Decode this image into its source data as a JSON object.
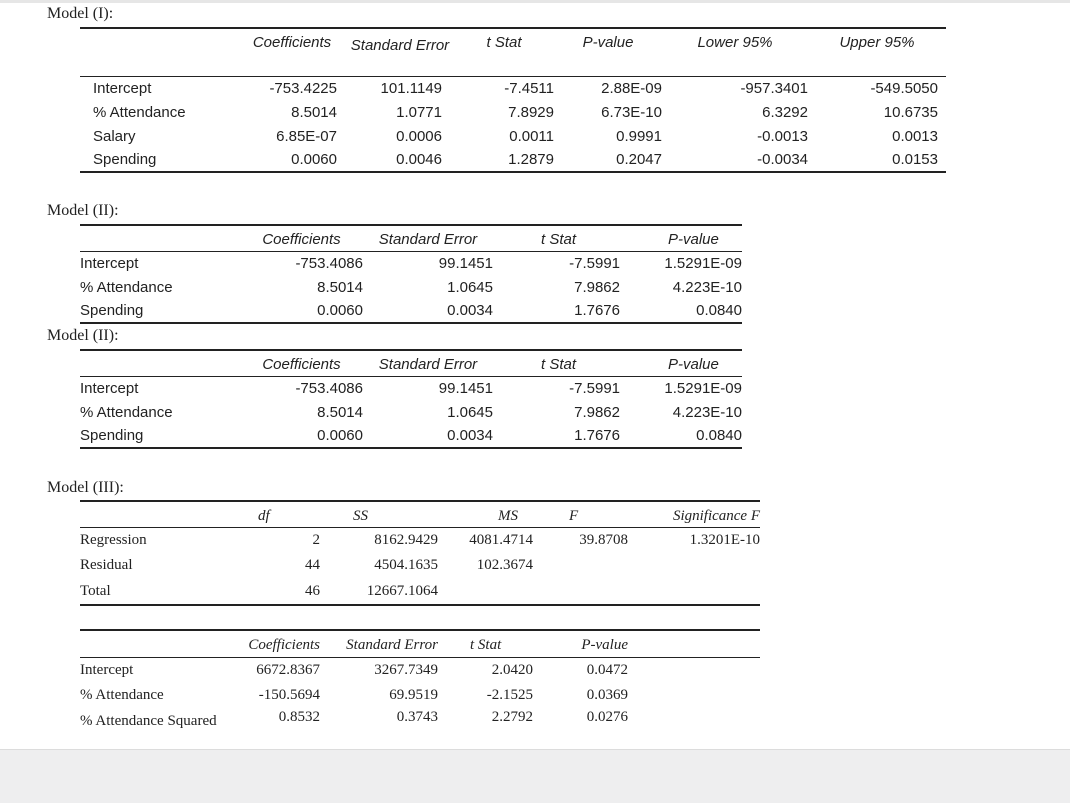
{
  "model1": {
    "title": "Model (I):",
    "headers": [
      "Coefficients",
      "Standard Error",
      "t Stat",
      "P-value",
      "Lower 95%",
      "Upper 95%"
    ],
    "rows": [
      {
        "label": "Intercept",
        "values": [
          "-753.4225",
          "101.1149",
          "-7.4511",
          "2.88E-09",
          "-957.3401",
          "-549.5050"
        ]
      },
      {
        "label": "% Attendance",
        "values": [
          "8.5014",
          "1.0771",
          "7.8929",
          "6.73E-10",
          "6.3292",
          "10.6735"
        ]
      },
      {
        "label": "Salary",
        "values": [
          "6.85E-07",
          "0.0006",
          "0.0011",
          "0.9991",
          "-0.0013",
          "0.0013"
        ]
      },
      {
        "label": "Spending",
        "values": [
          "0.0060",
          "0.0046",
          "1.2879",
          "0.2047",
          "-0.0034",
          "0.0153"
        ]
      }
    ]
  },
  "model2a": {
    "title": "Model (II):",
    "headers": [
      "Coefficients",
      "Standard Error",
      "t Stat",
      "P-value"
    ],
    "rows": [
      {
        "label": "Intercept",
        "values": [
          "-753.4086",
          "99.1451",
          "-7.5991",
          "1.5291E-09"
        ]
      },
      {
        "label": "% Attendance",
        "values": [
          "8.5014",
          "1.0645",
          "7.9862",
          "4.223E-10"
        ]
      },
      {
        "label": "Spending",
        "values": [
          "0.0060",
          "0.0034",
          "1.7676",
          "0.0840"
        ]
      }
    ]
  },
  "model2b": {
    "title": "Model (II):",
    "headers": [
      "Coefficients",
      "Standard Error",
      "t Stat",
      "P-value"
    ],
    "rows": [
      {
        "label": "Intercept",
        "values": [
          "-753.4086",
          "99.1451",
          "-7.5991",
          "1.5291E-09"
        ]
      },
      {
        "label": "% Attendance",
        "values": [
          "8.5014",
          "1.0645",
          "7.9862",
          "4.223E-10"
        ]
      },
      {
        "label": "Spending",
        "values": [
          "0.0060",
          "0.0034",
          "1.7676",
          "0.0840"
        ]
      }
    ]
  },
  "model3": {
    "title": "Model (III):",
    "anova": {
      "headers": [
        "df",
        "SS",
        "MS",
        "F",
        "Significance F"
      ],
      "rows": [
        {
          "label": "Regression",
          "values": [
            "2",
            "8162.9429",
            "4081.4714",
            "39.8708",
            "1.3201E-10"
          ]
        },
        {
          "label": "Residual",
          "values": [
            "44",
            "4504.1635",
            "102.3674",
            "",
            ""
          ]
        },
        {
          "label": "Total",
          "values": [
            "46",
            "12667.1064",
            "",
            "",
            ""
          ]
        }
      ]
    },
    "coef": {
      "headers": [
        "Coefficients",
        "Standard Error",
        "t Stat",
        "P-value"
      ],
      "rows": [
        {
          "label": "Intercept",
          "values": [
            "6672.8367",
            "3267.7349",
            "2.0420",
            "0.0472"
          ]
        },
        {
          "label": "% Attendance",
          "values": [
            "-150.5694",
            "69.9519",
            "-2.1525",
            "0.0369"
          ]
        },
        {
          "label": "% Attendance Squared",
          "values": [
            "0.8532",
            "0.3743",
            "2.2792",
            "0.0276"
          ]
        }
      ]
    }
  }
}
